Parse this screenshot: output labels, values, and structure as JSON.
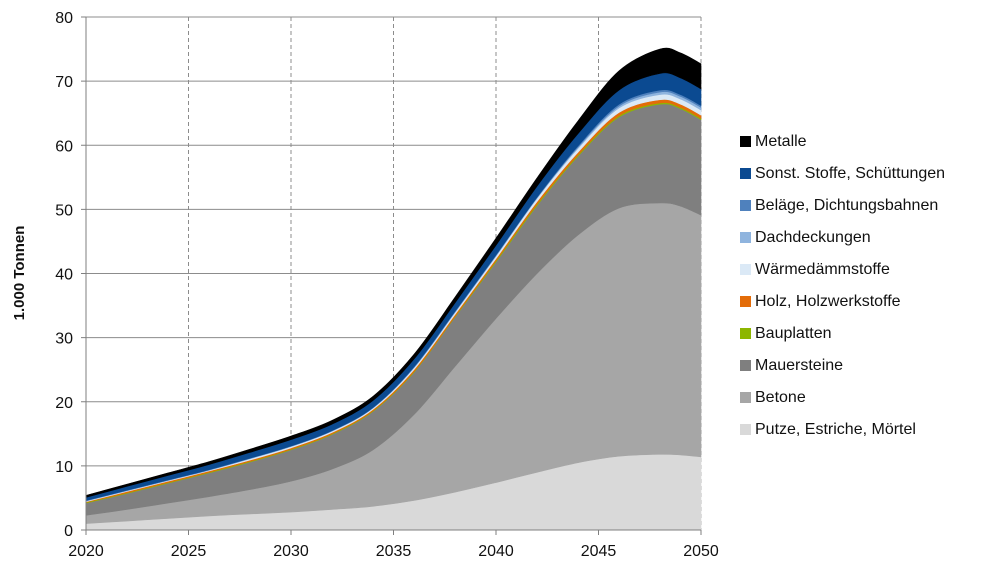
{
  "chart_data": {
    "type": "area",
    "stacked": true,
    "title": "",
    "xlabel": "",
    "ylabel": "1.000 Tonnen",
    "xlim": [
      2020,
      2050
    ],
    "ylim": [
      0,
      80
    ],
    "x_ticks": [
      2020,
      2025,
      2030,
      2035,
      2040,
      2045,
      2050
    ],
    "y_ticks": [
      0,
      10,
      20,
      30,
      40,
      50,
      60,
      70,
      80
    ],
    "grid": {
      "vertical": "dashed",
      "horizontal": "solid"
    },
    "legend": {
      "position": "right"
    },
    "x": [
      2020,
      2022,
      2024,
      2026,
      2028,
      2030,
      2032,
      2034,
      2036,
      2038,
      2040,
      2042,
      2044,
      2046,
      2048,
      2049,
      2050
    ],
    "series": [
      {
        "name": "Putze, Estriche, Mörtel",
        "color": "#d9d9d9",
        "values": [
          1.0,
          1.4,
          1.8,
          2.2,
          2.5,
          2.8,
          3.2,
          3.7,
          4.6,
          5.9,
          7.4,
          9.0,
          10.5,
          11.5,
          11.8,
          11.7,
          11.4
        ]
      },
      {
        "name": "Betone",
        "color": "#a6a6a6",
        "values": [
          1.3,
          1.8,
          2.4,
          3.0,
          3.8,
          4.8,
          6.3,
          8.8,
          13.4,
          19.6,
          25.6,
          31.0,
          35.5,
          38.7,
          39.2,
          38.8,
          37.7
        ]
      },
      {
        "name": "Mauersteine",
        "color": "#7f7f7f",
        "values": [
          1.9,
          2.5,
          3.1,
          3.7,
          4.3,
          4.9,
          5.4,
          6.0,
          6.6,
          7.7,
          8.8,
          10.6,
          12.3,
          14.2,
          15.4,
          15.2,
          14.9
        ]
      },
      {
        "name": "Bauplatten",
        "color": "#8db600",
        "values": [
          0.1,
          0.1,
          0.1,
          0.1,
          0.1,
          0.1,
          0.1,
          0.1,
          0.1,
          0.1,
          0.2,
          0.2,
          0.2,
          0.2,
          0.2,
          0.2,
          0.2
        ]
      },
      {
        "name": "Holz, Holzwerkstoffe",
        "color": "#e36c09",
        "values": [
          0.1,
          0.2,
          0.2,
          0.2,
          0.2,
          0.2,
          0.2,
          0.2,
          0.3,
          0.3,
          0.3,
          0.4,
          0.4,
          0.5,
          0.5,
          0.5,
          0.5
        ]
      },
      {
        "name": "Wärmedämmstoffe",
        "color": "#dbe9f6",
        "values": [
          0.1,
          0.1,
          0.1,
          0.1,
          0.2,
          0.2,
          0.2,
          0.2,
          0.3,
          0.3,
          0.4,
          0.5,
          0.6,
          0.7,
          0.8,
          0.8,
          0.8
        ]
      },
      {
        "name": "Dachdeckungen",
        "color": "#8fb4de",
        "values": [
          0.05,
          0.05,
          0.05,
          0.05,
          0.05,
          0.05,
          0.05,
          0.05,
          0.05,
          0.1,
          0.1,
          0.1,
          0.2,
          0.3,
          0.4,
          0.4,
          0.4
        ]
      },
      {
        "name": "Beläge, Dichtungsbahnen",
        "color": "#4f81bd",
        "values": [
          0.05,
          0.05,
          0.05,
          0.05,
          0.05,
          0.05,
          0.05,
          0.05,
          0.1,
          0.1,
          0.1,
          0.1,
          0.2,
          0.3,
          0.3,
          0.3,
          0.3
        ]
      },
      {
        "name": "Sonst. Stoffe, Schüttungen",
        "color": "#0b4a91",
        "values": [
          0.5,
          0.6,
          0.7,
          0.8,
          0.9,
          1.0,
          1.0,
          1.1,
          1.2,
          1.3,
          1.5,
          1.7,
          1.9,
          2.2,
          2.6,
          2.6,
          2.6
        ]
      },
      {
        "name": "Metalle",
        "color": "#000000",
        "values": [
          0.3,
          0.35,
          0.4,
          0.45,
          0.5,
          0.55,
          0.6,
          0.65,
          0.75,
          0.9,
          1.1,
          1.3,
          2.0,
          3.0,
          3.8,
          3.9,
          3.9
        ]
      }
    ]
  }
}
